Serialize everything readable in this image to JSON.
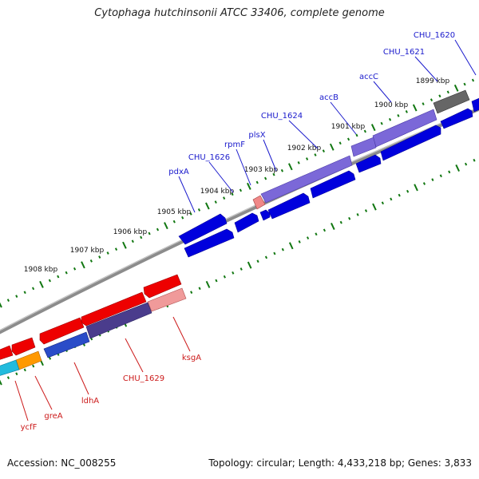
{
  "title": "Cytophaga hutchinsonii ATCC 33406, complete genome",
  "footer": {
    "accession": "Accession: NC_008255",
    "summary": "Topology: circular; Length: 4,433,218 bp; Genes: 3,833"
  },
  "colors": {
    "forward_label": "#1a1acc",
    "reverse_label": "#cc1a1a",
    "backbone": "#8c8c8c",
    "tick": "#117711"
  },
  "ticks": [
    "1908 kbp",
    "1907 kbp",
    "1906 kbp",
    "1905 kbp",
    "1904 kbp",
    "1903 kbp",
    "1902 kbp",
    "1901 kbp",
    "1900 kbp",
    "1899 kbp"
  ],
  "forward_genes": [
    "pdxA",
    "CHU_1626",
    "rpmF",
    "plsX",
    "CHU_1624",
    "accB",
    "accC",
    "CHU_1621",
    "CHU_1620"
  ],
  "reverse_genes": [
    "ksgA",
    "CHU_1629",
    "ldhA",
    "greA",
    "ycfF"
  ]
}
